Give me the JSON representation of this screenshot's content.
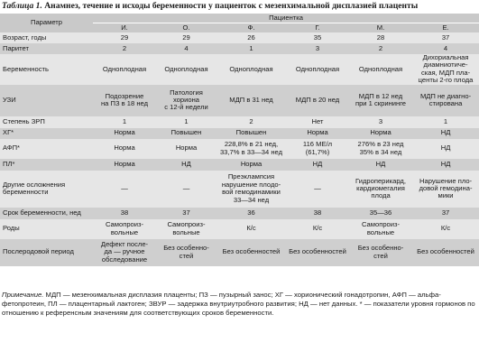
{
  "caption": {
    "number": "Таблица 1.",
    "text": " Анамнез, течение и исходы беременности у пациенток с мезенхимальной дисплазией плаценты"
  },
  "table": {
    "param_header": "Параметр",
    "patient_header": "Пациентка",
    "patients": [
      "И.",
      "О.",
      "Ф.",
      "Г.",
      "М.",
      "Е."
    ],
    "rows": [
      {
        "label": "Возраст, годы",
        "cells": [
          "29",
          "29",
          "26",
          "35",
          "28",
          "37"
        ]
      },
      {
        "label": "Паритет",
        "cells": [
          "2",
          "4",
          "1",
          "3",
          "2",
          "4"
        ]
      },
      {
        "label": "Беременность",
        "cells": [
          "Одноплодная",
          "Одноплодная",
          "Одноплодная",
          "Одноплодная",
          "Одноплодная",
          "Дихориальная\nдиамниотиче-\nская, МДП пла-\nценты 2-го плода"
        ]
      },
      {
        "label": "УЗИ",
        "cells": [
          "Подозрение\nна ПЗ в 18 нед",
          "Патология\nхориона\nс 12-й недели",
          "МДП в 31 нед",
          "МДП в 20 нед",
          "МДП в 12 нед\nпри 1 скрининге",
          "МДП не диагно-\nстирована"
        ]
      },
      {
        "label": "Степень ЗРП",
        "cells": [
          "1",
          "1",
          "2",
          "Нет",
          "3",
          "1"
        ]
      },
      {
        "label": "ХГ*",
        "cells": [
          "Норма",
          "Повышен",
          "Повышен",
          "Норма",
          "Норма",
          "НД"
        ]
      },
      {
        "label": "АФП*",
        "cells": [
          "Норма",
          "Норма",
          "228,8% в 21 нед,\n33,7% в 33—34 нед",
          "116 МЕ/л\n(61,7%)",
          "276% в 23 нед\n35% в 34 нед",
          "НД"
        ]
      },
      {
        "label": "ПЛ*",
        "cells": [
          "Норма",
          "НД",
          "Норма",
          "НД",
          "НД",
          "НД"
        ]
      },
      {
        "label": "Другие осложнения\nбеременности",
        "cells": [
          "—",
          "—",
          "Преэклампсия\nнарушение плодо-\nвой гемодинамики\n33—34 нед",
          "—",
          "Гидроперикард,\nкардиомегалия\nплода",
          "Нарушение пло-\nдовой гемодина-\nмики"
        ]
      },
      {
        "label": "Срок беременности, нед",
        "cells": [
          "38",
          "37",
          "36",
          "38",
          "35—36",
          "37"
        ]
      },
      {
        "label": "Роды",
        "cells": [
          "Самопроиз-\nвольные",
          "Самопроиз-\nвольные",
          "К/с",
          "К/с",
          "Самопроиз-\nвольные",
          "К/с"
        ]
      },
      {
        "label": "Послеродовой период",
        "cells": [
          "Дефект после-\nда — ручное\nобследование",
          "Без особенно-\nстей",
          "Без особенностей",
          "Без особенностей",
          "Без особенно-\nстей",
          "Без особенностей"
        ]
      }
    ]
  },
  "note": {
    "label": "Примечание.",
    "text": " МДП — мезенхимальная дисплазия плаценты; ПЗ — пузырный занос; ХГ — хорионический гонадотропин, АФП — альфа-фетопротеин, ПЛ — плацентарный лактоген; ЗВУР — задержка внутриутробного развития; НД — нет данных. * — показатели уровня гормонов по отношению к референсным значениям для соответствующих сроков беременности."
  }
}
